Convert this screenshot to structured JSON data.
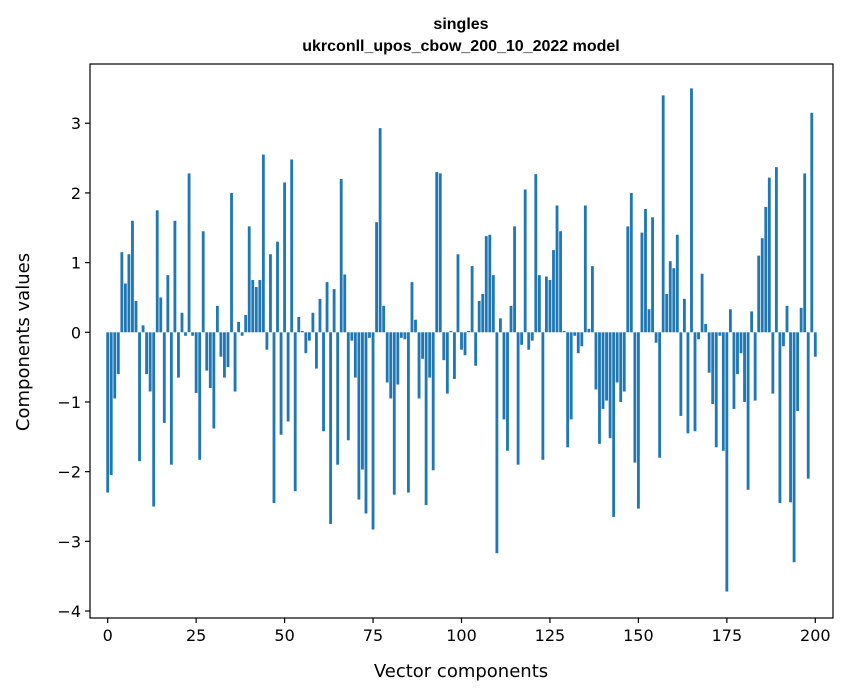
{
  "chart_data": {
    "type": "bar",
    "title": "singles",
    "subtitle": "ukrconll_upos_cbow_200_10_2022 model",
    "xlabel": "Vector components",
    "ylabel": "Components values",
    "xlim": [
      -5,
      205
    ],
    "ylim": [
      -4.1,
      3.85
    ],
    "xticks": [
      0,
      25,
      50,
      75,
      100,
      125,
      150,
      175,
      200
    ],
    "yticks": [
      -4,
      -3,
      -2,
      -1,
      0,
      1,
      2,
      3
    ],
    "grid": false,
    "bar_color": "#1f77b4",
    "x_start": 0,
    "values": [
      -2.3,
      -2.05,
      -0.95,
      -0.6,
      1.15,
      0.7,
      1.12,
      1.6,
      0.45,
      -1.85,
      0.1,
      -0.6,
      -0.85,
      -2.5,
      1.75,
      0.5,
      -1.3,
      0.82,
      -1.9,
      1.6,
      -0.65,
      0.28,
      -0.05,
      2.28,
      -0.05,
      -0.87,
      -1.83,
      1.45,
      -0.55,
      -0.8,
      -1.38,
      0.38,
      -0.35,
      -0.65,
      -0.5,
      2.0,
      -0.85,
      0.15,
      -0.05,
      0.25,
      1.52,
      0.75,
      0.65,
      0.75,
      2.55,
      -0.25,
      1.12,
      -2.45,
      1.3,
      -1.47,
      2.15,
      -1.28,
      2.48,
      -2.28,
      0.22,
      0.02,
      -0.3,
      -0.12,
      0.28,
      -0.52,
      0.48,
      -1.42,
      0.72,
      -2.75,
      0.62,
      -1.9,
      2.2,
      0.83,
      -1.55,
      -0.12,
      -0.65,
      -2.4,
      -1.97,
      -2.6,
      -0.08,
      -2.83,
      1.58,
      2.93,
      0.38,
      -0.72,
      -0.95,
      -2.33,
      -0.75,
      -0.08,
      -0.1,
      -2.3,
      0.72,
      0.18,
      -0.95,
      -0.38,
      -2.48,
      -0.65,
      -1.98,
      2.3,
      2.28,
      -0.4,
      -0.88,
      0.02,
      -0.67,
      1.12,
      -0.25,
      -0.33,
      0.02,
      0.95,
      -0.48,
      0.45,
      0.55,
      1.38,
      1.4,
      0.82,
      -3.17,
      0.2,
      -1.25,
      -1.7,
      0.38,
      1.52,
      -1.9,
      -0.18,
      2.05,
      -0.25,
      -0.12,
      2.27,
      0.82,
      -1.83,
      0.8,
      0.75,
      1.18,
      1.82,
      1.45,
      0.02,
      -1.65,
      -1.25,
      -0.05,
      -0.3,
      -0.2,
      1.82,
      0.05,
      0.95,
      -0.82,
      -1.6,
      -1.1,
      -0.98,
      -1.52,
      -2.65,
      -0.72,
      -1.0,
      -0.85,
      1.52,
      2.0,
      -1.87,
      -2.53,
      1.43,
      1.77,
      0.33,
      1.65,
      -0.15,
      -1.8,
      3.4,
      0.55,
      1.02,
      0.92,
      1.4,
      -1.2,
      0.48,
      -1.45,
      3.5,
      -1.42,
      -0.1,
      0.84,
      0.12,
      -0.58,
      -1.03,
      -1.65,
      -0.05,
      -1.7,
      -3.72,
      0.33,
      -1.1,
      -0.6,
      -0.3,
      -1.0,
      -2.26,
      0.3,
      -0.98,
      1.1,
      1.35,
      1.8,
      2.22,
      -0.88,
      2.37,
      -2.45,
      -0.2,
      0.38,
      -2.44,
      -3.3,
      -1.13,
      0.35,
      2.28,
      -2.1,
      3.15,
      -0.35
    ]
  }
}
